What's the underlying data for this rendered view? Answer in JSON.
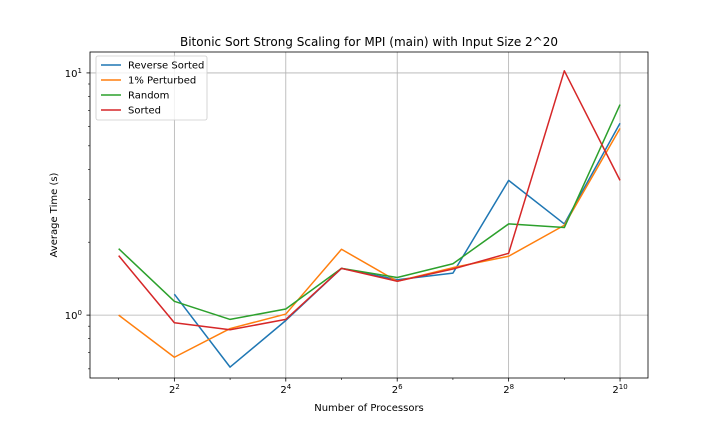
{
  "chart_data": {
    "type": "line",
    "title": "Bitonic Sort Strong Scaling for MPI (main) with Input Size 2^20",
    "xlabel": "Number of Processors",
    "ylabel": "Average Time (s)",
    "xscale": "log2",
    "yscale": "log10",
    "xlim": [
      1.4,
      1450
    ],
    "ylim": [
      0.55,
      12.2
    ],
    "grid": true,
    "legend_position": "top-left",
    "x_ticks": [
      {
        "value": 4,
        "base": "2",
        "exp": "2"
      },
      {
        "value": 16,
        "base": "2",
        "exp": "4"
      },
      {
        "value": 64,
        "base": "2",
        "exp": "6"
      },
      {
        "value": 256,
        "base": "2",
        "exp": "8"
      },
      {
        "value": 1024,
        "base": "2",
        "exp": "10"
      }
    ],
    "y_ticks": [
      {
        "value": 1,
        "base": "10",
        "exp": "0"
      },
      {
        "value": 10,
        "base": "10",
        "exp": "1"
      }
    ],
    "x": [
      2,
      4,
      8,
      16,
      32,
      64,
      128,
      256,
      512,
      1024
    ],
    "series": [
      {
        "name": "Reverse Sorted",
        "color": "#1f77b4",
        "values": [
          null,
          1.22,
          0.61,
          0.95,
          1.56,
          1.4,
          1.49,
          3.6,
          2.38,
          6.2
        ]
      },
      {
        "name": "1% Perturbed",
        "color": "#ff7f0e",
        "values": [
          1.0,
          0.67,
          0.88,
          1.01,
          1.87,
          1.38,
          1.57,
          1.75,
          2.35,
          5.9
        ]
      },
      {
        "name": "Random",
        "color": "#2ca02c",
        "values": [
          1.88,
          1.14,
          0.96,
          1.06,
          1.56,
          1.43,
          1.63,
          2.38,
          2.3,
          7.4
        ]
      },
      {
        "name": "Sorted",
        "color": "#d62728",
        "values": [
          1.76,
          0.93,
          0.87,
          0.96,
          1.56,
          1.38,
          1.55,
          1.8,
          10.2,
          3.6
        ]
      }
    ]
  }
}
